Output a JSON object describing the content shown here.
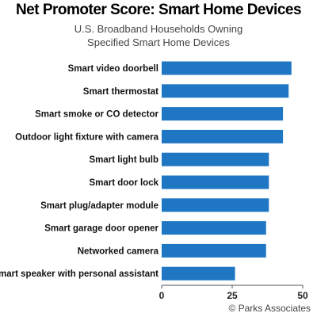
{
  "chart_data": {
    "type": "bar",
    "orientation": "horizontal",
    "title": "Net Promoter Score: Smart Home Devices",
    "subtitle_line1": "U.S. Broadband Households Owning",
    "subtitle_line2": "Specified Smart Home Devices",
    "categories": [
      "Smart video doorbell",
      "Smart thermostat",
      "Smart smoke or CO detector",
      "Outdoor light fixture with camera",
      "Smart light bulb",
      "Smart door lock",
      "Smart plug/adapter module",
      "Smart garage door opener",
      "Networked camera",
      "Smart speaker with personal assistant"
    ],
    "values": [
      46,
      45,
      43,
      43,
      38,
      38,
      38,
      37,
      37,
      26
    ],
    "xlim": [
      0,
      50
    ],
    "xticks": [
      "0",
      "25",
      "50"
    ],
    "bar_color": "#1f77c4",
    "grid": false,
    "credit": "© Parks Associates"
  }
}
